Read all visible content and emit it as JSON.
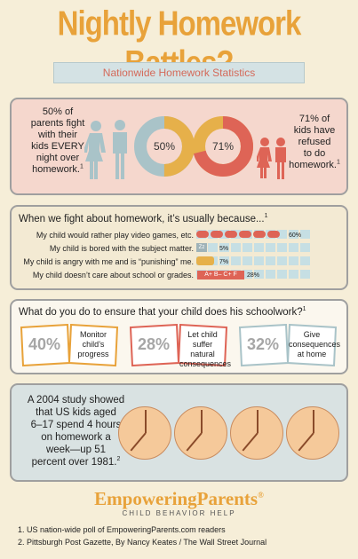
{
  "title": "Nightly Homework Battles?",
  "subtitle": "Nationwide Homework Statistics",
  "stat1": {
    "lines": [
      "50% of",
      "parents fight",
      "with their",
      "kids EVERY",
      "night over",
      "homework."
    ],
    "footnote": "1",
    "donut_label": "50%",
    "value": 50,
    "colors": {
      "a": "#e6b04a",
      "b": "#a9c3c8"
    }
  },
  "stat2": {
    "lines": [
      "71% of",
      "kids have",
      "refused",
      "to do",
      "homework."
    ],
    "footnote": "1",
    "donut_label": "71%",
    "value": 71,
    "colors": {
      "a": "#de6456",
      "b": "#e6b04a"
    }
  },
  "reasons": {
    "heading": "When we fight about homework, it’s usually because...",
    "footnote": "1",
    "items": [
      {
        "label": "My child would rather play video games, etc.",
        "icon": "game-controller-icon",
        "value": 60,
        "pct": "60%"
      },
      {
        "label": "My child is bored with the subject matter.",
        "icon": "zzz-icon",
        "value": 5,
        "pct": "5%"
      },
      {
        "label": "My child is angry with me and is “punishing” me.",
        "icon": "angry-face-icon",
        "value": 7,
        "pct": "7%"
      },
      {
        "label": "My child  doesn’t care about school or grades.",
        "icon": "grades-icon",
        "value": 28,
        "pct": "28%"
      }
    ],
    "grades_text": "A+ B– C+ F"
  },
  "ensure": {
    "heading": "What do you do to ensure that your child does his schoolwork?",
    "footnote": "1",
    "items": [
      {
        "pct": "40%",
        "desc": [
          "Monitor",
          "child’s",
          "progress"
        ]
      },
      {
        "pct": "28%",
        "desc": [
          "Let child",
          "suffer natural",
          "consequences"
        ]
      },
      {
        "pct": "32%",
        "desc": [
          "Give",
          "consequences",
          "at home"
        ]
      }
    ]
  },
  "study": {
    "lines": [
      "A 2004 study showed",
      "that US kids aged",
      "6–17 spend 4 hours",
      "on homework a",
      "week—up 51",
      "percent over 1981."
    ],
    "footnote": "2"
  },
  "logo": {
    "name": "EmpoweringParents",
    "mark": "®",
    "tagline": "Child Behavior Help"
  },
  "footnotes": [
    "1. US nation-wide poll of EmpoweringParents.com readers",
    "2. Pittsburgh Post Gazette, By Nancy Keates / The Wall Street Journal"
  ]
}
